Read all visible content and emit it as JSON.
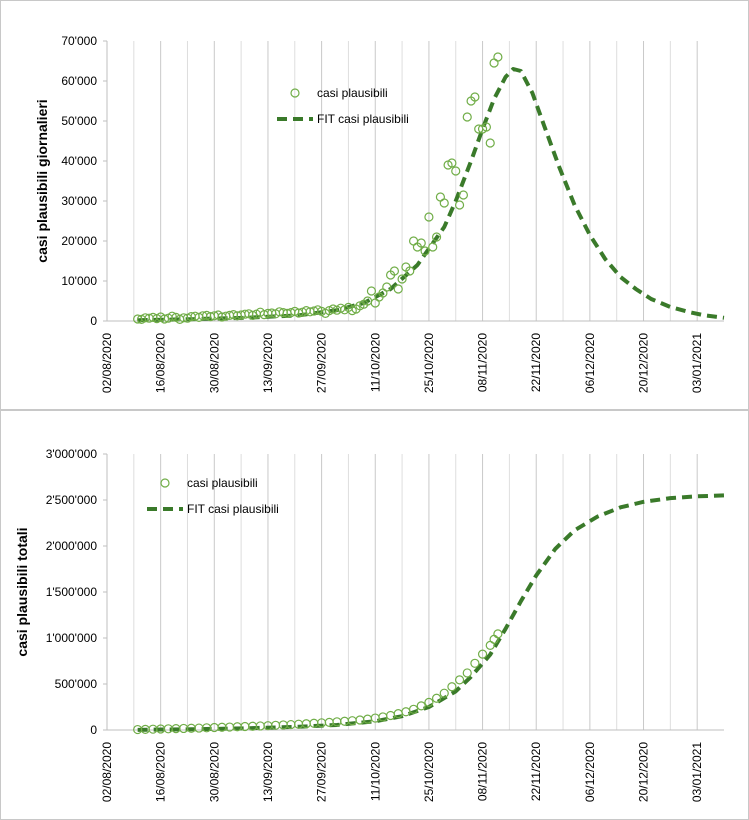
{
  "chart_data": [
    {
      "type": "scatter",
      "ylabel": "casi plausibili giornalieri",
      "ylim": [
        0,
        70000
      ],
      "yticks": [
        "0",
        "10'000",
        "20'000",
        "30'000",
        "40'000",
        "50'000",
        "60'000",
        "70'000"
      ],
      "xticks": [
        "02/08/2020",
        "16/08/2020",
        "30/08/2020",
        "13/09/2020",
        "27/09/2020",
        "11/10/2020",
        "25/10/2020",
        "08/11/2020",
        "22/11/2020",
        "06/12/2020",
        "20/12/2020",
        "03/01/2021"
      ],
      "xlim": [
        "2020-08-02",
        "2021-01-10"
      ],
      "grid": "vertical",
      "legend_position": "top-center",
      "series": [
        {
          "name": "casi plausibili",
          "style": "open-circle",
          "color": "#70ad47",
          "points": [
            [
              "2020-08-10",
              500
            ],
            [
              "2020-08-11",
              400
            ],
            [
              "2020-08-12",
              800
            ],
            [
              "2020-08-13",
              700
            ],
            [
              "2020-08-14",
              900
            ],
            [
              "2020-08-15",
              600
            ],
            [
              "2020-08-16",
              1000
            ],
            [
              "2020-08-17",
              500
            ],
            [
              "2020-08-18",
              700
            ],
            [
              "2020-08-19",
              1200
            ],
            [
              "2020-08-20",
              900
            ],
            [
              "2020-08-21",
              400
            ],
            [
              "2020-08-22",
              800
            ],
            [
              "2020-08-23",
              700
            ],
            [
              "2020-08-24",
              1100
            ],
            [
              "2020-08-25",
              1200
            ],
            [
              "2020-08-26",
              900
            ],
            [
              "2020-08-27",
              1300
            ],
            [
              "2020-08-28",
              1400
            ],
            [
              "2020-08-29",
              1100
            ],
            [
              "2020-08-30",
              1300
            ],
            [
              "2020-08-31",
              1500
            ],
            [
              "2020-09-01",
              1000
            ],
            [
              "2020-09-02",
              1200
            ],
            [
              "2020-09-03",
              1400
            ],
            [
              "2020-09-04",
              1600
            ],
            [
              "2020-09-05",
              1300
            ],
            [
              "2020-09-06",
              1500
            ],
            [
              "2020-09-07",
              1700
            ],
            [
              "2020-09-08",
              1800
            ],
            [
              "2020-09-09",
              1400
            ],
            [
              "2020-09-10",
              1700
            ],
            [
              "2020-09-11",
              2200
            ],
            [
              "2020-09-12",
              1600
            ],
            [
              "2020-09-13",
              1900
            ],
            [
              "2020-09-14",
              2000
            ],
            [
              "2020-09-15",
              1800
            ],
            [
              "2020-09-16",
              2300
            ],
            [
              "2020-09-17",
              2100
            ],
            [
              "2020-09-18",
              1900
            ],
            [
              "2020-09-19",
              2100
            ],
            [
              "2020-09-20",
              2400
            ],
            [
              "2020-09-21",
              2000
            ],
            [
              "2020-09-22",
              2200
            ],
            [
              "2020-09-23",
              2600
            ],
            [
              "2020-09-24",
              2300
            ],
            [
              "2020-09-25",
              2500
            ],
            [
              "2020-09-26",
              2800
            ],
            [
              "2020-09-27",
              2400
            ],
            [
              "2020-09-28",
              1900
            ],
            [
              "2020-09-29",
              2600
            ],
            [
              "2020-09-30",
              3000
            ],
            [
              "2020-10-01",
              2700
            ],
            [
              "2020-10-02",
              3200
            ],
            [
              "2020-10-03",
              2800
            ],
            [
              "2020-10-04",
              3400
            ],
            [
              "2020-10-05",
              2600
            ],
            [
              "2020-10-06",
              3000
            ],
            [
              "2020-10-07",
              3800
            ],
            [
              "2020-10-08",
              4200
            ],
            [
              "2020-10-09",
              5000
            ],
            [
              "2020-10-10",
              7500
            ],
            [
              "2020-10-11",
              4500
            ],
            [
              "2020-10-12",
              6000
            ],
            [
              "2020-10-13",
              7000
            ],
            [
              "2020-10-14",
              8500
            ],
            [
              "2020-10-15",
              11500
            ],
            [
              "2020-10-16",
              12500
            ],
            [
              "2020-10-17",
              8000
            ],
            [
              "2020-10-18",
              10500
            ],
            [
              "2020-10-19",
              13500
            ],
            [
              "2020-10-20",
              12500
            ],
            [
              "2020-10-21",
              20000
            ],
            [
              "2020-10-22",
              18500
            ],
            [
              "2020-10-23",
              19500
            ],
            [
              "2020-10-24",
              17500
            ],
            [
              "2020-10-25",
              26000
            ],
            [
              "2020-10-26",
              18500
            ],
            [
              "2020-10-27",
              21000
            ],
            [
              "2020-10-28",
              31000
            ],
            [
              "2020-10-29",
              29500
            ],
            [
              "2020-10-30",
              39000
            ],
            [
              "2020-10-31",
              39500
            ],
            [
              "2020-11-01",
              37500
            ],
            [
              "2020-11-02",
              29000
            ],
            [
              "2020-11-03",
              31500
            ],
            [
              "2020-11-04",
              51000
            ],
            [
              "2020-11-05",
              55000
            ],
            [
              "2020-11-06",
              56000
            ],
            [
              "2020-11-07",
              48000
            ],
            [
              "2020-11-08",
              48000
            ],
            [
              "2020-11-09",
              48500
            ],
            [
              "2020-11-10",
              44500
            ],
            [
              "2020-11-11",
              64500
            ],
            [
              "2020-11-12",
              66000
            ]
          ]
        },
        {
          "name": "FIT casi plausibili",
          "style": "dashed-line",
          "color": "#3a7a2a",
          "points": [
            [
              "2020-08-10",
              200
            ],
            [
              "2020-08-24",
              450
            ],
            [
              "2020-09-07",
              800
            ],
            [
              "2020-09-21",
              1400
            ],
            [
              "2020-10-01",
              2700
            ],
            [
              "2020-10-08",
              4500
            ],
            [
              "2020-10-15",
              8000
            ],
            [
              "2020-10-22",
              14000
            ],
            [
              "2020-10-29",
              23500
            ],
            [
              "2020-11-01",
              30000
            ],
            [
              "2020-11-05",
              40000
            ],
            [
              "2020-11-08",
              48000
            ],
            [
              "2020-11-11",
              55500
            ],
            [
              "2020-11-14",
              61000
            ],
            [
              "2020-11-16",
              63000
            ],
            [
              "2020-11-18",
              62500
            ],
            [
              "2020-11-21",
              57000
            ],
            [
              "2020-11-24",
              49000
            ],
            [
              "2020-11-28",
              38500
            ],
            [
              "2020-12-02",
              29000
            ],
            [
              "2020-12-06",
              21500
            ],
            [
              "2020-12-10",
              15500
            ],
            [
              "2020-12-14",
              11000
            ],
            [
              "2020-12-18",
              8000
            ],
            [
              "2020-12-22",
              5500
            ],
            [
              "2020-12-27",
              3500
            ],
            [
              "2021-01-01",
              2200
            ],
            [
              "2021-01-05",
              1400
            ],
            [
              "2021-01-10",
              800
            ]
          ]
        }
      ]
    },
    {
      "type": "scatter",
      "ylabel": "casi plausibili totali",
      "ylim": [
        0,
        3000000
      ],
      "yticks": [
        "0",
        "500'000",
        "1'000'000",
        "1'500'000",
        "2'000'000",
        "2'500'000",
        "3'000'000"
      ],
      "xticks": [
        "02/08/2020",
        "16/08/2020",
        "30/08/2020",
        "13/09/2020",
        "27/09/2020",
        "11/10/2020",
        "25/10/2020",
        "08/11/2020",
        "22/11/2020",
        "06/12/2020",
        "20/12/2020",
        "03/01/2021"
      ],
      "xlim": [
        "2020-08-02",
        "2021-01-10"
      ],
      "grid": "vertical",
      "legend_position": "top-left",
      "series": [
        {
          "name": "casi plausibili",
          "style": "open-circle",
          "color": "#70ad47",
          "points": [
            [
              "2020-08-10",
              5000
            ],
            [
              "2020-08-12",
              7000
            ],
            [
              "2020-08-14",
              9000
            ],
            [
              "2020-08-16",
              11000
            ],
            [
              "2020-08-18",
              13000
            ],
            [
              "2020-08-20",
              15000
            ],
            [
              "2020-08-22",
              17000
            ],
            [
              "2020-08-24",
              19000
            ],
            [
              "2020-08-26",
              21000
            ],
            [
              "2020-08-28",
              24000
            ],
            [
              "2020-08-30",
              27000
            ],
            [
              "2020-09-01",
              30000
            ],
            [
              "2020-09-03",
              32000
            ],
            [
              "2020-09-05",
              35000
            ],
            [
              "2020-09-07",
              38000
            ],
            [
              "2020-09-09",
              41000
            ],
            [
              "2020-09-11",
              44000
            ],
            [
              "2020-09-13",
              47000
            ],
            [
              "2020-09-15",
              51000
            ],
            [
              "2020-09-17",
              55000
            ],
            [
              "2020-09-19",
              59000
            ],
            [
              "2020-09-21",
              63000
            ],
            [
              "2020-09-23",
              68000
            ],
            [
              "2020-09-25",
              73000
            ],
            [
              "2020-09-27",
              78000
            ],
            [
              "2020-09-29",
              83000
            ],
            [
              "2020-10-01",
              89000
            ],
            [
              "2020-10-03",
              95000
            ],
            [
              "2020-10-05",
              101000
            ],
            [
              "2020-10-07",
              109000
            ],
            [
              "2020-10-09",
              118000
            ],
            [
              "2020-10-11",
              130000
            ],
            [
              "2020-10-13",
              142000
            ],
            [
              "2020-10-15",
              158000
            ],
            [
              "2020-10-17",
              178000
            ],
            [
              "2020-10-19",
              198000
            ],
            [
              "2020-10-21",
              225000
            ],
            [
              "2020-10-23",
              262000
            ],
            [
              "2020-10-25",
              300000
            ],
            [
              "2020-10-27",
              345000
            ],
            [
              "2020-10-29",
              400000
            ],
            [
              "2020-10-31",
              470000
            ],
            [
              "2020-11-02",
              545000
            ],
            [
              "2020-11-04",
              620000
            ],
            [
              "2020-11-06",
              725000
            ],
            [
              "2020-11-08",
              825000
            ],
            [
              "2020-11-10",
              920000
            ],
            [
              "2020-11-11",
              985000
            ],
            [
              "2020-11-12",
              1045000
            ]
          ]
        },
        {
          "name": "FIT casi plausibili",
          "style": "dashed-line",
          "color": "#3a7a2a",
          "points": [
            [
              "2020-08-10",
              2000
            ],
            [
              "2020-08-24",
              8000
            ],
            [
              "2020-09-07",
              18000
            ],
            [
              "2020-09-21",
              35000
            ],
            [
              "2020-10-01",
              55000
            ],
            [
              "2020-10-11",
              95000
            ],
            [
              "2020-10-18",
              150000
            ],
            [
              "2020-10-25",
              250000
            ],
            [
              "2020-11-01",
              420000
            ],
            [
              "2020-11-05",
              580000
            ],
            [
              "2020-11-10",
              820000
            ],
            [
              "2020-11-14",
              1100000
            ],
            [
              "2020-11-18",
              1400000
            ],
            [
              "2020-11-22",
              1680000
            ],
            [
              "2020-11-27",
              1970000
            ],
            [
              "2020-12-02",
              2170000
            ],
            [
              "2020-12-08",
              2320000
            ],
            [
              "2020-12-14",
              2420000
            ],
            [
              "2020-12-20",
              2480000
            ],
            [
              "2020-12-27",
              2520000
            ],
            [
              "2021-01-03",
              2540000
            ],
            [
              "2021-01-10",
              2550000
            ]
          ]
        }
      ]
    }
  ]
}
